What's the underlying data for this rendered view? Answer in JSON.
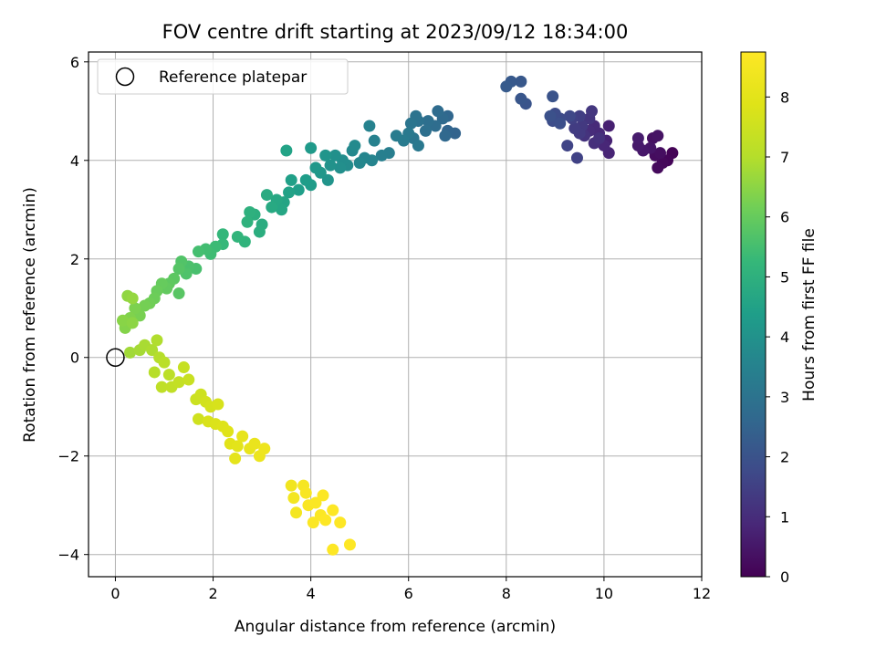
{
  "chart_data": {
    "type": "scatter",
    "title": "FOV centre drift starting at 2023/09/12 18:34:00",
    "xlabel": "Angular distance from reference (arcmin)",
    "ylabel": "Rotation from reference (arcmin)",
    "xlim": [
      -0.55,
      12
    ],
    "ylim": [
      -4.45,
      6.2
    ],
    "xticks": [
      0,
      2,
      4,
      6,
      8,
      10,
      12
    ],
    "yticks": [
      -4,
      -2,
      0,
      2,
      4,
      6
    ],
    "grid": true,
    "legend": {
      "position": "top-left",
      "entries": [
        "Reference platepar"
      ]
    },
    "reference_point": {
      "x": 0,
      "y": 0
    },
    "colorbar": {
      "label": "Hours from first FF file",
      "range": [
        0,
        8.75
      ],
      "ticks": [
        0,
        1,
        2,
        3,
        4,
        5,
        6,
        7,
        8
      ],
      "colormap": "viridis"
    },
    "point_columns": [
      "x",
      "y",
      "hours"
    ],
    "points": [
      [
        11.4,
        4.15,
        0.05
      ],
      [
        11.3,
        4.0,
        0.1
      ],
      [
        11.2,
        3.95,
        0.15
      ],
      [
        11.1,
        3.85,
        0.2
      ],
      [
        11.05,
        4.1,
        0.25
      ],
      [
        11.15,
        4.15,
        0.3
      ],
      [
        11.0,
        4.45,
        0.35
      ],
      [
        11.1,
        4.5,
        0.4
      ],
      [
        10.95,
        4.25,
        0.45
      ],
      [
        10.8,
        4.2,
        0.5
      ],
      [
        10.7,
        4.3,
        0.55
      ],
      [
        10.7,
        4.45,
        0.6
      ],
      [
        10.1,
        4.7,
        0.7
      ],
      [
        10.05,
        4.4,
        0.75
      ],
      [
        10.1,
        4.15,
        0.8
      ],
      [
        10.0,
        4.3,
        0.85
      ],
      [
        9.9,
        4.55,
        0.9
      ],
      [
        9.8,
        4.7,
        0.95
      ],
      [
        9.7,
        4.6,
        1.0
      ],
      [
        9.8,
        4.35,
        1.05
      ],
      [
        9.9,
        4.45,
        1.1
      ],
      [
        9.6,
        4.5,
        1.15
      ],
      [
        9.7,
        4.85,
        1.2
      ],
      [
        9.75,
        5.0,
        1.25
      ],
      [
        9.55,
        4.7,
        1.3
      ],
      [
        9.5,
        4.55,
        1.35
      ],
      [
        9.4,
        4.65,
        1.4
      ],
      [
        9.5,
        4.9,
        1.45
      ],
      [
        9.35,
        4.85,
        1.5
      ],
      [
        9.45,
        4.05,
        1.55
      ],
      [
        9.25,
        4.3,
        1.6
      ],
      [
        9.3,
        4.9,
        1.7
      ],
      [
        9.1,
        4.85,
        1.75
      ],
      [
        9.0,
        4.95,
        1.8
      ],
      [
        8.95,
        4.8,
        1.85
      ],
      [
        9.1,
        4.75,
        1.9
      ],
      [
        8.9,
        4.9,
        1.95
      ],
      [
        8.95,
        5.3,
        2.0
      ],
      [
        8.4,
        5.15,
        2.05
      ],
      [
        8.3,
        5.25,
        2.1
      ],
      [
        8.3,
        5.6,
        2.15
      ],
      [
        8.1,
        5.6,
        2.2
      ],
      [
        8.0,
        5.5,
        2.25
      ],
      [
        6.95,
        4.55,
        2.5
      ],
      [
        6.8,
        4.6,
        2.55
      ],
      [
        6.8,
        4.9,
        2.6
      ],
      [
        6.75,
        4.5,
        2.65
      ],
      [
        6.7,
        4.85,
        2.7
      ],
      [
        6.6,
        5.0,
        2.75
      ],
      [
        6.55,
        4.7,
        2.8
      ],
      [
        6.4,
        4.8,
        2.85
      ],
      [
        6.35,
        4.6,
        2.9
      ],
      [
        6.2,
        4.8,
        2.95
      ],
      [
        6.15,
        4.9,
        3.0
      ],
      [
        6.05,
        4.75,
        3.05
      ],
      [
        6.1,
        4.45,
        3.1
      ],
      [
        6.2,
        4.3,
        3.15
      ],
      [
        6.0,
        4.55,
        3.2
      ],
      [
        5.9,
        4.4,
        3.25
      ],
      [
        5.75,
        4.5,
        3.3
      ],
      [
        5.6,
        4.15,
        3.35
      ],
      [
        5.45,
        4.1,
        3.4
      ],
      [
        5.3,
        4.4,
        3.45
      ],
      [
        5.2,
        4.7,
        3.5
      ],
      [
        5.25,
        4.0,
        3.55
      ],
      [
        5.1,
        4.05,
        3.6
      ],
      [
        5.0,
        3.95,
        3.65
      ],
      [
        4.85,
        4.2,
        3.7
      ],
      [
        4.9,
        4.3,
        3.75
      ],
      [
        4.75,
        3.9,
        3.8
      ],
      [
        4.65,
        4.0,
        3.85
      ],
      [
        4.6,
        3.85,
        3.9
      ],
      [
        4.5,
        4.1,
        3.95
      ],
      [
        4.4,
        3.9,
        4.0
      ],
      [
        4.35,
        3.6,
        4.05
      ],
      [
        4.3,
        4.1,
        4.1
      ],
      [
        4.2,
        3.75,
        4.15
      ],
      [
        4.1,
        3.85,
        4.2
      ],
      [
        4.0,
        4.25,
        4.25
      ],
      [
        4.0,
        3.5,
        4.3
      ],
      [
        3.9,
        3.6,
        4.35
      ],
      [
        3.75,
        3.4,
        4.4
      ],
      [
        3.6,
        3.6,
        4.45
      ],
      [
        3.55,
        3.35,
        4.5
      ],
      [
        3.5,
        4.2,
        4.55
      ],
      [
        3.45,
        3.15,
        4.6
      ],
      [
        3.4,
        3.0,
        4.65
      ],
      [
        3.3,
        3.2,
        4.7
      ],
      [
        3.2,
        3.05,
        4.75
      ],
      [
        3.1,
        3.3,
        4.8
      ],
      [
        3.0,
        2.7,
        4.85
      ],
      [
        2.95,
        2.55,
        4.9
      ],
      [
        2.85,
        2.9,
        4.95
      ],
      [
        2.75,
        2.95,
        5.0
      ],
      [
        2.7,
        2.75,
        5.05
      ],
      [
        2.65,
        2.35,
        5.1
      ],
      [
        2.5,
        2.45,
        5.15
      ],
      [
        2.2,
        2.5,
        5.2
      ],
      [
        2.2,
        2.3,
        5.25
      ],
      [
        2.05,
        2.25,
        5.35
      ],
      [
        1.95,
        2.1,
        5.4
      ],
      [
        1.85,
        2.2,
        5.45
      ],
      [
        1.7,
        2.15,
        5.5
      ],
      [
        1.65,
        1.8,
        5.55
      ],
      [
        1.5,
        1.85,
        5.6
      ],
      [
        1.45,
        1.7,
        5.65
      ],
      [
        1.35,
        1.95,
        5.7
      ],
      [
        1.3,
        1.8,
        5.75
      ],
      [
        1.3,
        1.3,
        5.8
      ],
      [
        1.2,
        1.6,
        5.85
      ],
      [
        1.1,
        1.5,
        5.9
      ],
      [
        1.05,
        1.4,
        5.95
      ],
      [
        0.95,
        1.5,
        6.0
      ],
      [
        0.85,
        1.35,
        6.05
      ],
      [
        0.8,
        1.2,
        6.1
      ],
      [
        0.7,
        1.1,
        6.15
      ],
      [
        0.6,
        1.05,
        6.2
      ],
      [
        0.5,
        0.85,
        6.25
      ],
      [
        0.4,
        1.0,
        6.3
      ],
      [
        0.3,
        0.8,
        6.35
      ],
      [
        0.2,
        0.6,
        6.4
      ],
      [
        0.15,
        0.75,
        6.45
      ],
      [
        0.35,
        0.7,
        6.5
      ],
      [
        0.25,
        1.25,
        6.55
      ],
      [
        0.35,
        1.2,
        6.6
      ],
      [
        0.3,
        0.1,
        6.75
      ],
      [
        0.5,
        0.15,
        6.8
      ],
      [
        0.6,
        0.25,
        6.85
      ],
      [
        0.75,
        0.15,
        6.9
      ],
      [
        0.85,
        0.35,
        6.95
      ],
      [
        0.9,
        0.0,
        7.0
      ],
      [
        0.8,
        -0.3,
        7.05
      ],
      [
        1.0,
        -0.1,
        7.1
      ],
      [
        1.1,
        -0.35,
        7.15
      ],
      [
        0.95,
        -0.6,
        7.2
      ],
      [
        1.15,
        -0.6,
        7.25
      ],
      [
        1.3,
        -0.5,
        7.3
      ],
      [
        1.4,
        -0.2,
        7.35
      ],
      [
        1.5,
        -0.45,
        7.4
      ],
      [
        1.65,
        -0.85,
        7.45
      ],
      [
        1.75,
        -0.75,
        7.5
      ],
      [
        1.7,
        -1.25,
        7.55
      ],
      [
        1.85,
        -0.9,
        7.6
      ],
      [
        1.95,
        -1.0,
        7.65
      ],
      [
        2.1,
        -0.95,
        7.7
      ],
      [
        1.9,
        -1.3,
        7.75
      ],
      [
        2.05,
        -1.35,
        7.8
      ],
      [
        2.2,
        -1.4,
        7.85
      ],
      [
        2.3,
        -1.5,
        7.9
      ],
      [
        2.35,
        -1.75,
        7.95
      ],
      [
        2.5,
        -1.8,
        8.0
      ],
      [
        2.45,
        -2.05,
        8.05
      ],
      [
        2.6,
        -1.6,
        8.1
      ],
      [
        2.75,
        -1.85,
        8.15
      ],
      [
        2.85,
        -1.75,
        8.2
      ],
      [
        2.95,
        -2.0,
        8.25
      ],
      [
        3.05,
        -1.85,
        8.3
      ],
      [
        3.6,
        -2.6,
        8.4
      ],
      [
        3.65,
        -2.85,
        8.45
      ],
      [
        3.7,
        -3.15,
        8.5
      ],
      [
        3.85,
        -2.6,
        8.55
      ],
      [
        3.9,
        -2.75,
        8.6
      ],
      [
        3.95,
        -3.0,
        8.62
      ],
      [
        4.1,
        -2.95,
        8.65
      ],
      [
        4.05,
        -3.35,
        8.68
      ],
      [
        4.2,
        -3.2,
        8.7
      ],
      [
        4.25,
        -2.8,
        8.72
      ],
      [
        4.3,
        -3.3,
        8.74
      ],
      [
        4.45,
        -3.1,
        8.74
      ],
      [
        4.6,
        -3.35,
        8.75
      ],
      [
        4.8,
        -3.8,
        8.75
      ],
      [
        4.45,
        -3.9,
        8.75
      ]
    ]
  }
}
